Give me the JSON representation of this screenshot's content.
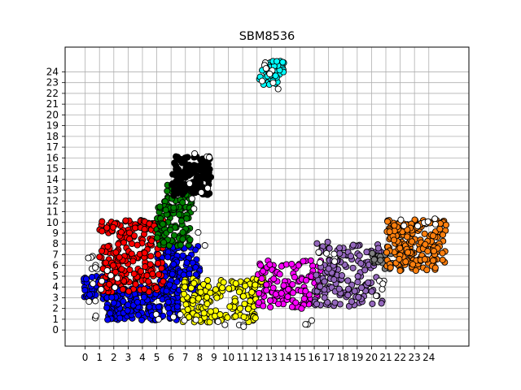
{
  "chart_data": {
    "type": "scatter",
    "title": "SBM8536",
    "xlabel": "",
    "ylabel": "",
    "xlim": [
      -1.4,
      26.8
    ],
    "ylim": [
      -1.5,
      26.3
    ],
    "x_ticks": [
      0,
      1,
      2,
      3,
      4,
      5,
      6,
      7,
      8,
      9,
      10,
      11,
      12,
      13,
      14,
      15,
      16,
      17,
      18,
      19,
      20,
      21,
      22,
      23,
      24
    ],
    "y_ticks": [
      0,
      1,
      2,
      3,
      4,
      5,
      6,
      7,
      8,
      9,
      10,
      11,
      12,
      13,
      14,
      15,
      16,
      17,
      18,
      19,
      20,
      21,
      22,
      23,
      24
    ],
    "grid": true,
    "legend": "none",
    "marker": "circle",
    "edge_color": "#000000",
    "clusters": [
      {
        "color": "#ffffff",
        "desc": "unassigned outliers",
        "regions": [
          [
            0.2,
            0.8,
            7.0,
            1.0,
            10
          ],
          [
            7.0,
            9.0,
            7.5,
            16.5,
            10
          ],
          [
            4.0,
            9.0,
            0.8,
            1.5,
            6
          ],
          [
            9.0,
            12.0,
            0.3,
            1.0,
            5
          ],
          [
            11.8,
            13.5,
            22.4,
            25.0,
            8
          ],
          [
            15.0,
            16.0,
            0.5,
            1.0,
            3
          ],
          [
            20.0,
            21.0,
            3.0,
            5.0,
            5
          ],
          [
            22.0,
            24.5,
            9.5,
            10.5,
            8
          ],
          [
            15.5,
            17.5,
            6.0,
            7.5,
            6
          ],
          [
            0.5,
            2.5,
            3.0,
            6.5,
            8
          ]
        ]
      },
      {
        "color": "#0000ff",
        "desc": "blue",
        "regions": [
          [
            -0.1,
            2.0,
            2.8,
            5.0,
            60
          ],
          [
            1.5,
            6.5,
            0.9,
            4.0,
            190
          ],
          [
            5.0,
            8.0,
            3.5,
            7.8,
            110
          ]
        ]
      },
      {
        "color": "#ff0000",
        "desc": "red",
        "regions": [
          [
            1.0,
            5.5,
            3.5,
            10.2,
            230
          ],
          [
            4.0,
            5.5,
            9.0,
            10.5,
            15
          ]
        ]
      },
      {
        "color": "#008000",
        "desc": "green",
        "regions": [
          [
            5.5,
            7.5,
            11.0,
            13.5,
            50
          ],
          [
            5.0,
            7.5,
            7.8,
            11.5,
            90
          ]
        ]
      },
      {
        "color": "#000000",
        "desc": "black",
        "regions": [
          [
            6.0,
            8.8,
            12.5,
            16.2,
            140
          ]
        ]
      },
      {
        "color": "#ffff00",
        "desc": "yellow",
        "regions": [
          [
            6.8,
            12.0,
            0.7,
            4.8,
            180
          ],
          [
            11.8,
            12.6,
            4.0,
            5.0,
            10
          ]
        ]
      },
      {
        "color": "#ff00ff",
        "desc": "magenta",
        "regions": [
          [
            12.0,
            16.5,
            2.0,
            6.5,
            130
          ]
        ]
      },
      {
        "color": "#9467bd",
        "desc": "purple",
        "regions": [
          [
            16.0,
            20.8,
            2.2,
            8.2,
            170
          ]
        ]
      },
      {
        "color": "#808080",
        "desc": "gray",
        "regions": [
          [
            20.0,
            21.5,
            5.5,
            7.2,
            25
          ]
        ]
      },
      {
        "color": "#ff7f0e",
        "desc": "orange",
        "regions": [
          [
            21.0,
            25.2,
            5.5,
            10.3,
            200
          ]
        ]
      },
      {
        "color": "#00ffff",
        "desc": "cyan",
        "regions": [
          [
            12.1,
            13.9,
            22.8,
            25.0,
            55
          ]
        ]
      }
    ]
  }
}
